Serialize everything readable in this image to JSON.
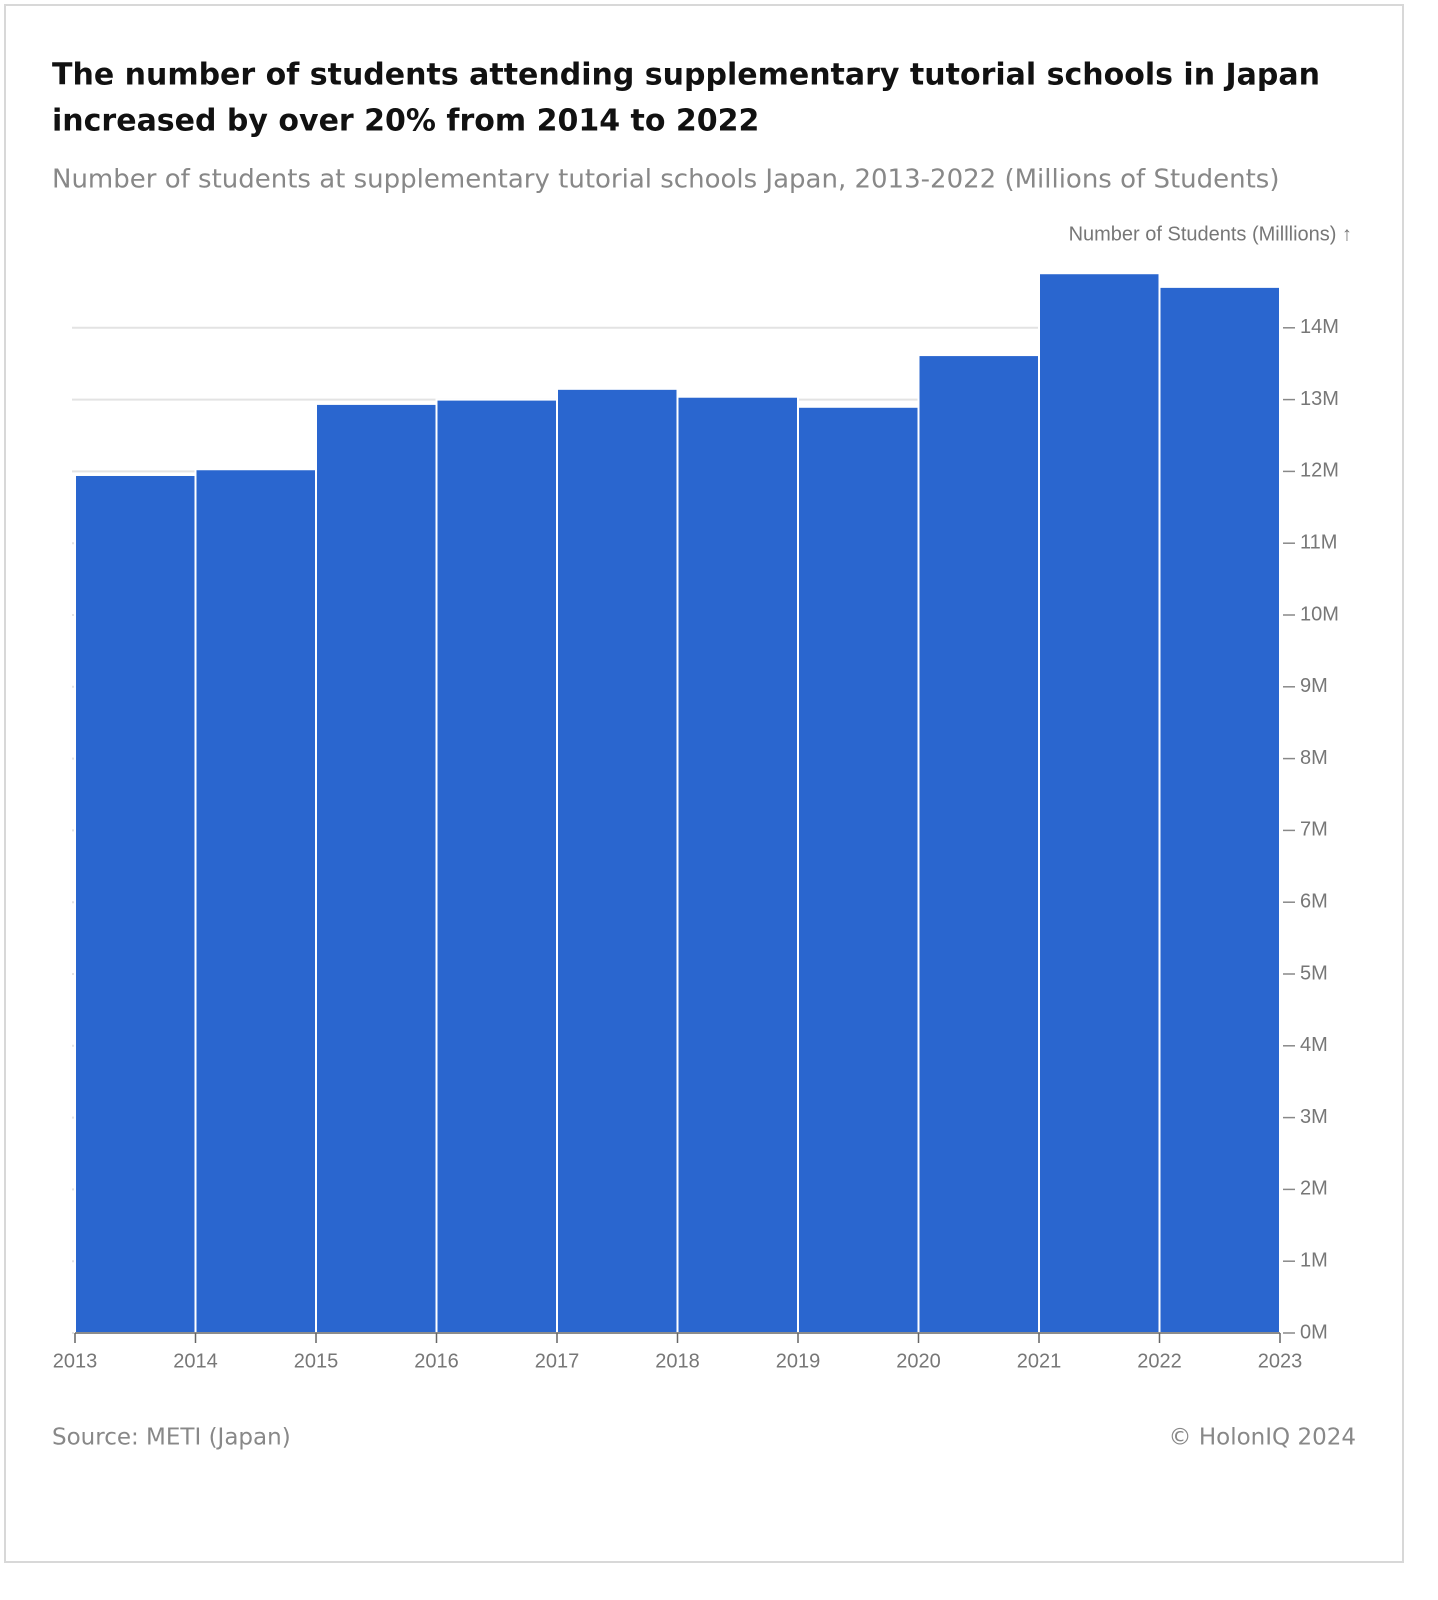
{
  "chart_data": {
    "type": "histogram",
    "title": [
      "The number of students attending supplementary tutorial schools in Japan",
      "increased by over 20% from 2014 to 2022"
    ],
    "subtitle": "Number of students at supplementary tutorial schools Japan, 2013-2022 (Millions of Students)",
    "y_axis_label": "Number of Students (Milllions) ↑",
    "bins": [
      2013,
      2014,
      2015,
      2016,
      2017,
      2018,
      2019,
      2020,
      2021,
      2022,
      2023
    ],
    "values": [
      11.95,
      12.03,
      12.94,
      13.0,
      13.15,
      13.04,
      12.9,
      13.62,
      14.76,
      14.57
    ],
    "color": "#2a66cf",
    "xlim": [
      2013,
      2023
    ],
    "xticks": [
      2013,
      2014,
      2015,
      2016,
      2017,
      2018,
      2019,
      2020,
      2021,
      2022,
      2023
    ],
    "ylim": [
      0,
      15
    ],
    "yticks": [
      {
        "value": 0,
        "label": "0M"
      },
      {
        "value": 1,
        "label": "1M"
      },
      {
        "value": 2,
        "label": "2M"
      },
      {
        "value": 3,
        "label": "3M"
      },
      {
        "value": 4,
        "label": "4M"
      },
      {
        "value": 5,
        "label": "5M"
      },
      {
        "value": 6,
        "label": "6M"
      },
      {
        "value": 7,
        "label": "7M"
      },
      {
        "value": 8,
        "label": "8M"
      },
      {
        "value": 9,
        "label": "9M"
      },
      {
        "value": 10,
        "label": "10M"
      },
      {
        "value": 11,
        "label": "11M"
      },
      {
        "value": 12,
        "label": "12M"
      },
      {
        "value": 13,
        "label": "13M"
      },
      {
        "value": 14,
        "label": "14M"
      }
    ],
    "grid": true,
    "source": "Source: METI (Japan)",
    "credit": "© HolonIQ 2024"
  }
}
